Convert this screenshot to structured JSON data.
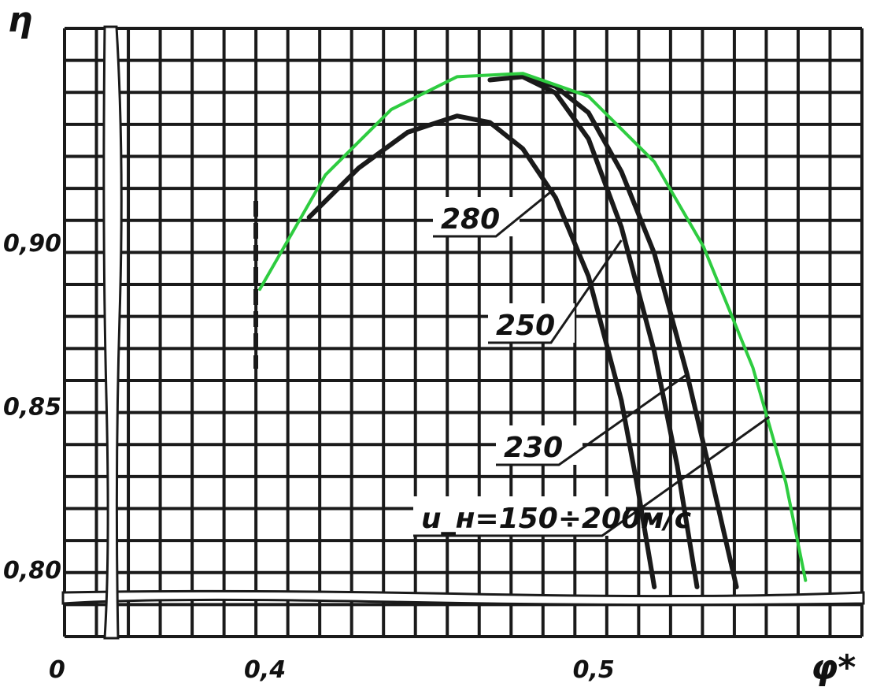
{
  "chart_data": {
    "type": "line",
    "title": "",
    "xlabel": "φ*",
    "ylabel": "η",
    "x_origin_label": "0",
    "xlim": [
      0.4,
      0.57
    ],
    "ylim": [
      0.795,
      0.96
    ],
    "x_ticks": [
      {
        "value": 0.4,
        "label": "0,4"
      },
      {
        "value": 0.5,
        "label": "0,5"
      }
    ],
    "y_ticks": [
      {
        "value": 0.9,
        "label": "0,90"
      },
      {
        "value": 0.85,
        "label": "0,85"
      },
      {
        "value": 0.8,
        "label": "0,80"
      }
    ],
    "grid": true,
    "axis_breaks": true,
    "series": [
      {
        "name": "280",
        "color": "#1a1a1a",
        "x": [
          0.415,
          0.43,
          0.445,
          0.46,
          0.47,
          0.48,
          0.49,
          0.5,
          0.51,
          0.515,
          0.52
        ],
        "y": [
          0.908,
          0.923,
          0.934,
          0.939,
          0.937,
          0.929,
          0.914,
          0.89,
          0.852,
          0.825,
          0.795
        ]
      },
      {
        "name": "250",
        "color": "#1a1a1a",
        "x": [
          0.47,
          0.48,
          0.49,
          0.5,
          0.51,
          0.52,
          0.527,
          0.533
        ],
        "y": [
          0.95,
          0.951,
          0.946,
          0.932,
          0.905,
          0.867,
          0.832,
          0.795
        ]
      },
      {
        "name": "230",
        "color": "#1a1a1a",
        "x": [
          0.48,
          0.49,
          0.5,
          0.51,
          0.52,
          0.53,
          0.537,
          0.545
        ],
        "y": [
          0.951,
          0.948,
          0.94,
          0.922,
          0.897,
          0.86,
          0.83,
          0.795
        ]
      },
      {
        "name": "u_н=150÷200м/с",
        "color": "#2ecc40",
        "x": [
          0.4,
          0.42,
          0.44,
          0.46,
          0.48,
          0.5,
          0.52,
          0.535,
          0.55,
          0.56,
          0.566
        ],
        "y": [
          0.886,
          0.921,
          0.941,
          0.951,
          0.952,
          0.945,
          0.925,
          0.899,
          0.862,
          0.827,
          0.797
        ]
      }
    ],
    "annotations": [
      {
        "text": "280",
        "series": "280",
        "at_x": 0.49,
        "at_y": 0.917
      },
      {
        "text": "250",
        "series": "250",
        "at_x": 0.51,
        "at_y": 0.901
      },
      {
        "text": "230",
        "series": "230",
        "at_x": 0.53,
        "at_y": 0.86
      },
      {
        "text": "u_н=150÷200м/с",
        "series": "u_н=150÷200м/с",
        "at_x": 0.555,
        "at_y": 0.847
      }
    ]
  }
}
